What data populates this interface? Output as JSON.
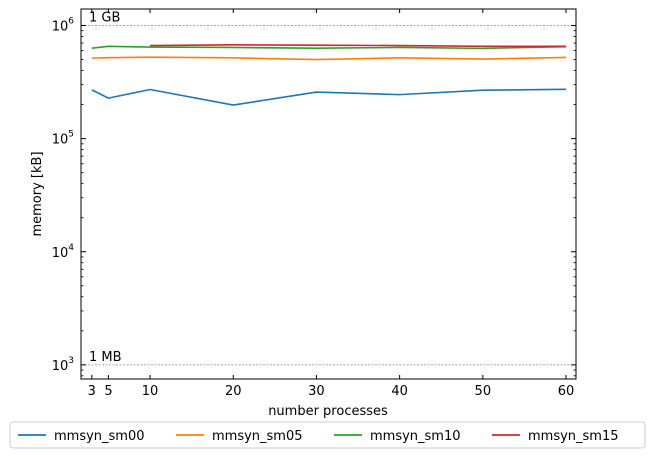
{
  "chart_data": {
    "type": "line",
    "xlabel": "number processes",
    "ylabel": "memory [kB]",
    "yscale": "log",
    "xlim": [
      1.7,
      61.2
    ],
    "ylim": [
      750,
      1400000
    ],
    "x_ticks": [
      3,
      5,
      10,
      20,
      30,
      40,
      50,
      60
    ],
    "y_ticks": [
      {
        "value": 1000,
        "base": "10",
        "exp": "3"
      },
      {
        "value": 10000,
        "base": "10",
        "exp": "4"
      },
      {
        "value": 100000,
        "base": "10",
        "exp": "5"
      },
      {
        "value": 1000000,
        "base": "10",
        "exp": "6"
      }
    ],
    "reference_lines": [
      {
        "value": 1000000,
        "label": "1 GB"
      },
      {
        "value": 1000,
        "label": "1 MB"
      }
    ],
    "legend_position": "bottom-outside",
    "series": [
      {
        "name": "mmsyn_sm00",
        "color": "#1f77b4",
        "x": [
          3,
          5,
          10,
          20,
          30,
          40,
          50,
          60
        ],
        "y": [
          270000,
          228000,
          272000,
          198000,
          258000,
          245000,
          268000,
          273000
        ]
      },
      {
        "name": "mmsyn_sm05",
        "color": "#ff7f0e",
        "x": [
          3,
          5,
          10,
          20,
          30,
          40,
          50,
          60
        ],
        "y": [
          515000,
          520000,
          525000,
          518000,
          500000,
          518000,
          505000,
          522000
        ]
      },
      {
        "name": "mmsyn_sm10",
        "color": "#2ca02c",
        "x": [
          3,
          5,
          10,
          20,
          30,
          40,
          50,
          60
        ],
        "y": [
          630000,
          655000,
          645000,
          640000,
          630000,
          640000,
          628000,
          650000
        ]
      },
      {
        "name": "mmsyn_sm15",
        "color": "#d62728",
        "x": [
          10,
          20,
          30,
          40,
          50,
          60
        ],
        "y": [
          665000,
          675000,
          670000,
          665000,
          655000,
          655000
        ]
      }
    ]
  }
}
